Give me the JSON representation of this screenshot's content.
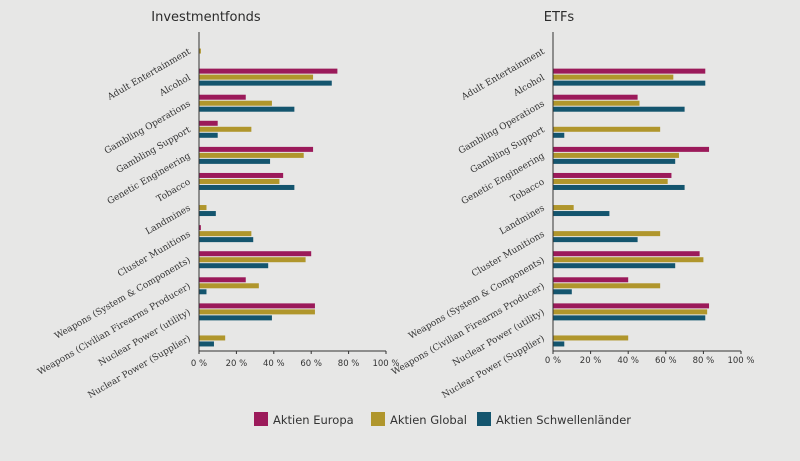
{
  "colors": {
    "Aktien Europa": "#9b1a5a",
    "Aktien Global": "#b0962c",
    "Aktien Schwellenländer": "#14556e",
    "axis": "#333333",
    "background": "#e7e7e6"
  },
  "legend": {
    "placement": "bottom-center",
    "items": [
      "Aktien Europa",
      "Aktien Global",
      "Aktien Schwellenländer"
    ]
  },
  "chart_data": [
    {
      "type": "bar",
      "orientation": "horizontal",
      "title": "Investmentfonds",
      "xlim": [
        0,
        100
      ],
      "xticks": [
        "0 %",
        "20 %",
        "40 %",
        "60 %",
        "80 %",
        "100 %"
      ],
      "grid": false,
      "categories": [
        "Adult Entertainment",
        "Alcohol",
        "Gambling Operations",
        "Gambling Support",
        "Genetic Engineering",
        "Tobacco",
        "Landmines",
        "Cluster Munitions",
        "Weapons (System & Components)",
        "Weapons (Civilian Firearms Producer)",
        "Nuclear Power (utility)",
        "Nuclear Power (Supplier)"
      ],
      "series": [
        {
          "name": "Aktien Europa",
          "values": [
            0,
            74,
            25,
            10,
            61,
            45,
            0,
            1,
            60,
            25,
            62,
            0
          ]
        },
        {
          "name": "Aktien Global",
          "values": [
            1,
            61,
            39,
            28,
            56,
            43,
            4,
            28,
            57,
            32,
            62,
            14
          ]
        },
        {
          "name": "Aktien Schwellenländer",
          "values": [
            0,
            71,
            51,
            10,
            38,
            51,
            9,
            29,
            37,
            4,
            39,
            8
          ]
        }
      ]
    },
    {
      "type": "bar",
      "orientation": "horizontal",
      "title": "ETFs",
      "xlim": [
        0,
        100
      ],
      "xticks": [
        "0 %",
        "20 %",
        "40 %",
        "60 %",
        "80 %",
        "100 %"
      ],
      "grid": false,
      "categories": [
        "Adult Entertainment",
        "Alcohol",
        "Gambling Operations",
        "Gambling Support",
        "Genetic Engineering",
        "Tobacco",
        "Landmines",
        "Cluster Munitions",
        "Weapons (System & Components)",
        "Weapons (Civilian Firearms Producer)",
        "Nuclear Power (utility)",
        "Nuclear Power (Supplier)"
      ],
      "series": [
        {
          "name": "Aktien Europa",
          "values": [
            0,
            81,
            45,
            0,
            83,
            63,
            0,
            0,
            78,
            40,
            83,
            0
          ]
        },
        {
          "name": "Aktien Global",
          "values": [
            0,
            64,
            46,
            57,
            67,
            61,
            11,
            57,
            80,
            57,
            82,
            40
          ]
        },
        {
          "name": "Aktien Schwellenländer",
          "values": [
            0,
            81,
            70,
            6,
            65,
            70,
            30,
            45,
            65,
            10,
            81,
            6
          ]
        }
      ]
    }
  ]
}
